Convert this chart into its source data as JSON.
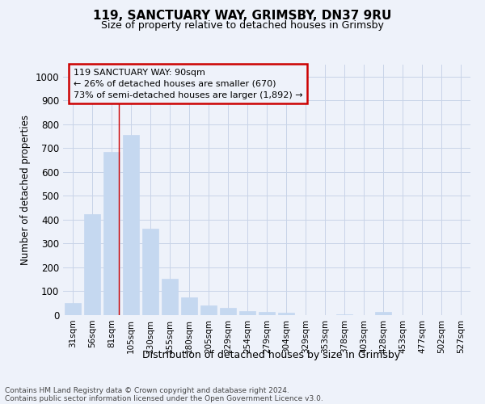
{
  "title1": "119, SANCTUARY WAY, GRIMSBY, DN37 9RU",
  "title2": "Size of property relative to detached houses in Grimsby",
  "xlabel": "Distribution of detached houses by size in Grimsby",
  "ylabel": "Number of detached properties",
  "annotation_line1": "119 SANCTUARY WAY: 90sqm",
  "annotation_line2": "← 26% of detached houses are smaller (670)",
  "annotation_line3": "73% of semi-detached houses are larger (1,892) →",
  "footer1": "Contains HM Land Registry data © Crown copyright and database right 2024.",
  "footer2": "Contains public sector information licensed under the Open Government Licence v3.0.",
  "categories": [
    "31sqm",
    "56sqm",
    "81sqm",
    "105sqm",
    "130sqm",
    "155sqm",
    "180sqm",
    "205sqm",
    "229sqm",
    "254sqm",
    "279sqm",
    "304sqm",
    "329sqm",
    "353sqm",
    "378sqm",
    "403sqm",
    "428sqm",
    "453sqm",
    "477sqm",
    "502sqm",
    "527sqm"
  ],
  "values": [
    52,
    422,
    685,
    755,
    363,
    152,
    75,
    40,
    30,
    17,
    13,
    10,
    0,
    0,
    3,
    0,
    12,
    0,
    0,
    0,
    0
  ],
  "bar_color": "#c5d8f0",
  "bar_edge_color": "#c5d8f0",
  "vline_color": "#cc0000",
  "vline_pos": 2.38,
  "annotation_box_color": "#cc0000",
  "grid_color": "#c8d4e8",
  "background_color": "#eef2fa",
  "ylim": [
    0,
    1050
  ],
  "yticks": [
    0,
    100,
    200,
    300,
    400,
    500,
    600,
    700,
    800,
    900,
    1000
  ]
}
